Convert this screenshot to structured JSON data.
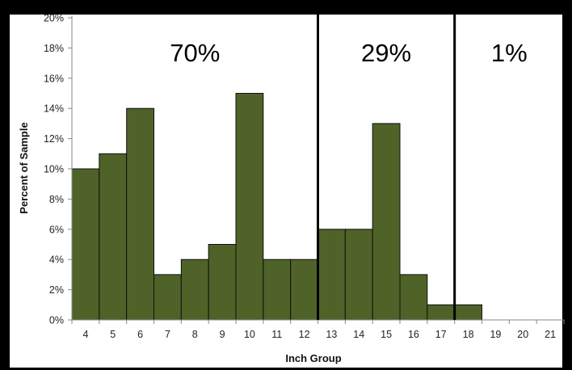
{
  "chart_data": {
    "type": "bar",
    "xlabel": "Inch Group",
    "ylabel": "Percent of Sample",
    "categories": [
      "4",
      "5",
      "6",
      "7",
      "8",
      "9",
      "10",
      "11",
      "12",
      "13",
      "14",
      "15",
      "16",
      "17",
      "18",
      "19",
      "20",
      "21"
    ],
    "values": [
      10,
      11,
      14,
      3,
      4,
      5,
      15,
      4,
      4,
      6,
      6,
      13,
      3,
      1,
      1,
      0,
      0,
      0
    ],
    "value_unit": "percent",
    "ylim": [
      0,
      20
    ],
    "y_ticks": [
      "0%",
      "2%",
      "4%",
      "6%",
      "8%",
      "10%",
      "12%",
      "14%",
      "16%",
      "18%",
      "20%"
    ],
    "grid": false,
    "legend": "none",
    "bar_color": "#4F6228",
    "bar_border_color": "#111111",
    "background_color": "#000000",
    "plot_background_color": "#FFFFFF",
    "region_dividers": [
      {
        "between": [
          "12",
          "13"
        ],
        "label": "70%"
      },
      {
        "between": [
          "17",
          "18"
        ],
        "label": "29%"
      }
    ],
    "region_end_label": "1%"
  }
}
